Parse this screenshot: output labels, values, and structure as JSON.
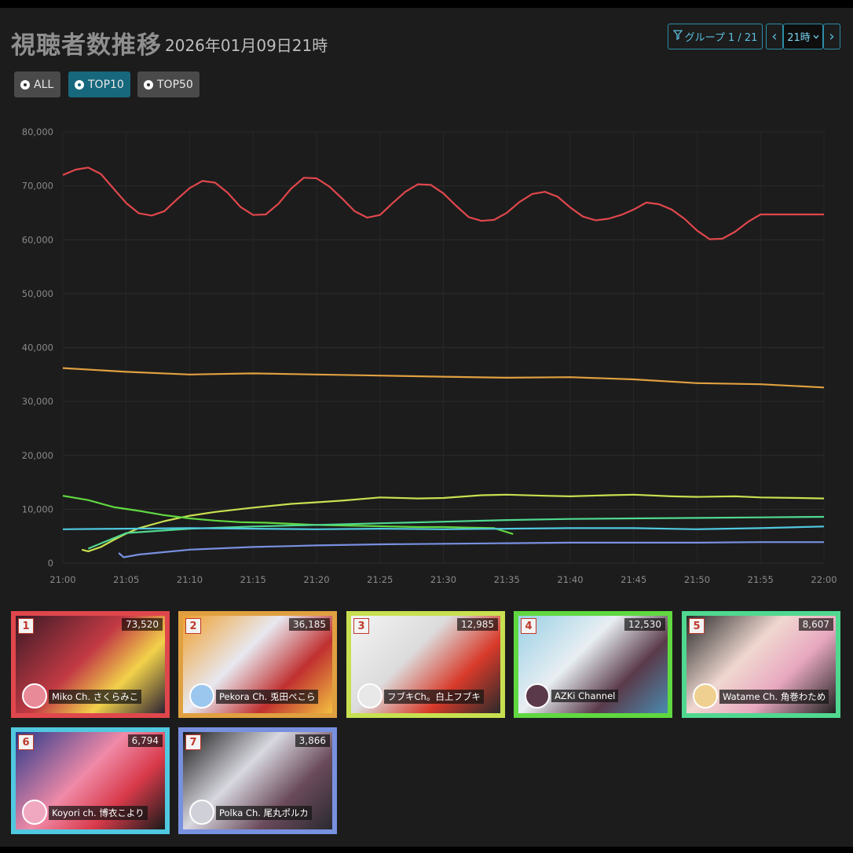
{
  "header": {
    "title": "視聴者数推移",
    "subtitle": "2026年01月09日21時",
    "group_label": "グループ 1 / 21",
    "prev_label": "‹",
    "hour_value": "21時",
    "next_label": "›"
  },
  "filters": [
    {
      "label": "ALL",
      "active": false
    },
    {
      "label": "TOP10",
      "active": true
    },
    {
      "label": "TOP50",
      "active": false
    }
  ],
  "chart_data": {
    "type": "line",
    "ylim": [
      0,
      80000
    ],
    "yticks": [
      "80,000",
      "70,000",
      "60,000",
      "50,000",
      "40,000",
      "30,000",
      "20,000",
      "10,000",
      "0"
    ],
    "ytick_values": [
      80000,
      70000,
      60000,
      50000,
      40000,
      30000,
      20000,
      10000,
      0
    ],
    "xticks": [
      "21:00",
      "21:05",
      "21:10",
      "21:15",
      "21:20",
      "21:25",
      "21:30",
      "21:35",
      "21:40",
      "21:45",
      "21:50",
      "21:55",
      "22:00"
    ],
    "grid": true,
    "series": [
      {
        "name": "Miko Ch. さくらみこ",
        "color": "#e0474c",
        "x": [
          0,
          1,
          2,
          3,
          4,
          5,
          6,
          7,
          8,
          9,
          10,
          11,
          12,
          13,
          14,
          15,
          16,
          17,
          18,
          19,
          20,
          21,
          22,
          23,
          24,
          25,
          26,
          27,
          28,
          29,
          30,
          31,
          32,
          33,
          34,
          35,
          36,
          37,
          38,
          39,
          40,
          41,
          42,
          43,
          44,
          45,
          46,
          47,
          48,
          49,
          50,
          51,
          52,
          53,
          54,
          55,
          56,
          57,
          58,
          59,
          60
        ],
        "y": [
          72000,
          73000,
          73400,
          72200,
          69500,
          66800,
          64900,
          64500,
          65300,
          67500,
          69600,
          70900,
          70600,
          68700,
          66100,
          64600,
          64700,
          66700,
          69500,
          71500,
          71400,
          69900,
          67700,
          65300,
          64100,
          64600,
          66800,
          68900,
          70300,
          70200,
          68600,
          66300,
          64200,
          63500,
          63700,
          65000,
          67000,
          68500,
          68900,
          68000,
          66000,
          64300,
          63600,
          63900,
          64600,
          65600,
          66900,
          66600,
          65600,
          63900,
          61700,
          60100,
          60200,
          61500,
          63300,
          64700,
          64700,
          64700,
          64700,
          64700,
          64700
        ]
      },
      {
        "name": "Pekora Ch. 兎田ぺこら",
        "color": "#e0a040",
        "x": [
          0,
          5,
          10,
          15,
          20,
          25,
          30,
          35,
          40,
          45,
          50,
          55,
          60
        ],
        "y": [
          36200,
          35500,
          35000,
          35200,
          35000,
          34800,
          34600,
          34400,
          34500,
          34100,
          33400,
          33200,
          32600
        ]
      },
      {
        "name": "フブキCh。白上フブキ",
        "color": "#c8e050",
        "x": [
          1.5,
          2,
          3,
          4,
          5,
          6,
          8,
          10,
          12,
          15,
          18,
          20,
          22,
          25,
          28,
          30,
          33,
          35,
          38,
          40,
          43,
          45,
          48,
          50,
          53,
          55,
          58,
          60
        ],
        "y": [
          2500,
          2200,
          3000,
          4300,
          5500,
          6500,
          7800,
          8800,
          9500,
          10300,
          11000,
          11300,
          11600,
          12200,
          12000,
          12100,
          12600,
          12700,
          12500,
          12400,
          12600,
          12700,
          12400,
          12300,
          12400,
          12200,
          12100,
          12000
        ]
      },
      {
        "name": "AZKi Channel",
        "color": "#60d840",
        "x": [
          0,
          2,
          4,
          6,
          8,
          10,
          12,
          14,
          16,
          18,
          20,
          22,
          24,
          26,
          28,
          30,
          32,
          34,
          35.5
        ],
        "y": [
          12500,
          11700,
          10400,
          9700,
          8900,
          8300,
          7900,
          7600,
          7500,
          7300,
          7100,
          7000,
          6900,
          6800,
          6700,
          6700,
          6600,
          6500,
          5400
        ]
      },
      {
        "name": "Watame Ch. 角巻わため",
        "color": "#50d890",
        "x": [
          2,
          5,
          10,
          15,
          20,
          25,
          30,
          35,
          40,
          45,
          50,
          55,
          60
        ],
        "y": [
          2700,
          5600,
          6400,
          6800,
          7100,
          7400,
          7700,
          8000,
          8200,
          8300,
          8400,
          8500,
          8600
        ]
      },
      {
        "name": "Koyori ch. 博衣こより",
        "color": "#50c8e0",
        "x": [
          0,
          5,
          10,
          15,
          20,
          25,
          30,
          35,
          40,
          45,
          50,
          55,
          60
        ],
        "y": [
          6300,
          6400,
          6500,
          6400,
          6300,
          6400,
          6300,
          6400,
          6500,
          6500,
          6300,
          6500,
          6800
        ]
      },
      {
        "name": "Polka Ch. 尾丸ポルカ",
        "color": "#7890e0",
        "x": [
          4.4,
          4.8,
          6,
          10,
          15,
          20,
          25,
          30,
          35,
          40,
          45,
          50,
          55,
          60
        ],
        "y": [
          1900,
          1100,
          1600,
          2500,
          3000,
          3300,
          3500,
          3600,
          3700,
          3800,
          3800,
          3800,
          3900,
          3900
        ]
      }
    ]
  },
  "cards": [
    {
      "rank": "1",
      "viewers": "73,520",
      "channel": "Miko Ch. さくらみこ",
      "color": "#e0474c"
    },
    {
      "rank": "2",
      "viewers": "36,185",
      "channel": "Pekora Ch. 兎田ぺこら",
      "color": "#e0a040"
    },
    {
      "rank": "3",
      "viewers": "12,985",
      "channel": "フブキCh。白上フブキ",
      "color": "#c8e050"
    },
    {
      "rank": "4",
      "viewers": "12,530",
      "channel": "AZKi Channel",
      "color": "#60d840"
    },
    {
      "rank": "5",
      "viewers": "8,607",
      "channel": "Watame Ch. 角巻わため",
      "color": "#50d890"
    },
    {
      "rank": "6",
      "viewers": "6,794",
      "channel": "Koyori ch. 博衣こより",
      "color": "#50c8e0"
    },
    {
      "rank": "7",
      "viewers": "3,866",
      "channel": "Polka Ch. 尾丸ポルカ",
      "color": "#7890e0"
    }
  ]
}
